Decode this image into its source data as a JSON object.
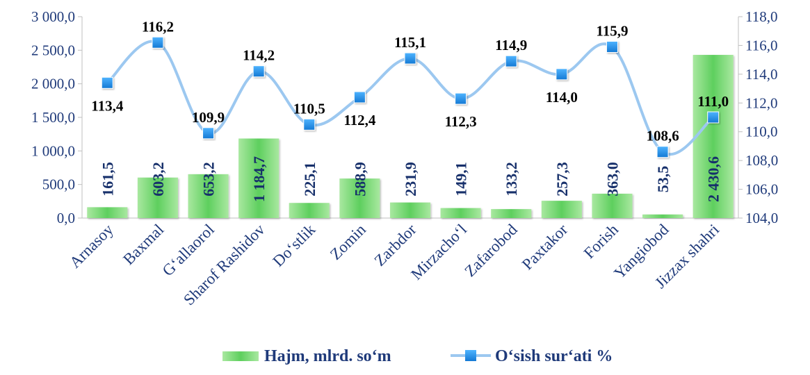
{
  "chart_data": {
    "type": "bar",
    "categories": [
      "Arnasoy",
      "Baxmal",
      "G‘allaorol",
      "Sharof Rashidov",
      "Do‘stlik",
      "Zomin",
      "Zarbdor",
      "Mirzacho‘l",
      "Zafarobod",
      "Paxtakor",
      "Forish",
      "Yangiobod",
      "Jizzax shahri"
    ],
    "series": [
      {
        "name": "Hajm, mlrd. so‘m",
        "type": "bar",
        "axis": "left",
        "values": [
          161.5,
          603.2,
          653.2,
          1184.7,
          225.1,
          588.9,
          231.9,
          149.1,
          133.2,
          257.3,
          363.0,
          53.5,
          2430.6
        ],
        "labels": [
          "161,5",
          "603,2",
          "653,2",
          "1 184,7",
          "225,1",
          "588,9",
          "231,9",
          "149,1",
          "133,2",
          "257,3",
          "363,0",
          "53,5",
          "2 430,6"
        ]
      },
      {
        "name": "O‘sish sur‘ati %",
        "type": "line",
        "axis": "right",
        "values": [
          113.4,
          116.2,
          109.9,
          114.2,
          110.5,
          112.4,
          115.1,
          112.3,
          114.9,
          114.0,
          115.9,
          108.6,
          111.0
        ],
        "labels": [
          "113,4",
          "116,2",
          "109,9",
          "114,2",
          "110,5",
          "112,4",
          "115,1",
          "112,3",
          "114,9",
          "114,0",
          "115,9",
          "108,6",
          "111,0"
        ]
      }
    ],
    "y_left": {
      "ylim": [
        0,
        3000
      ],
      "ticks": [
        0,
        500,
        1000,
        1500,
        2000,
        2500,
        3000
      ],
      "tick_labels": [
        "0,0",
        "500,0",
        "1 000,0",
        "1 500,0",
        "2 000,0",
        "2 500,0",
        "3 000,0"
      ]
    },
    "y_right": {
      "ylim": [
        104,
        118
      ],
      "ticks": [
        104,
        106,
        108,
        110,
        112,
        114,
        116,
        118
      ],
      "tick_labels": [
        "104,0",
        "106,0",
        "108,0",
        "110,0",
        "112,0",
        "114,0",
        "116,0",
        "118,0"
      ]
    },
    "grid": false,
    "legend": "bottom",
    "colors": {
      "bar": "#5ecf5e",
      "bar_light": "#a9e8a0",
      "line": "#9cc8f0",
      "marker": "#1e90e8",
      "axis_text": "#1f3a7a",
      "bar_label": "#17306b"
    }
  }
}
